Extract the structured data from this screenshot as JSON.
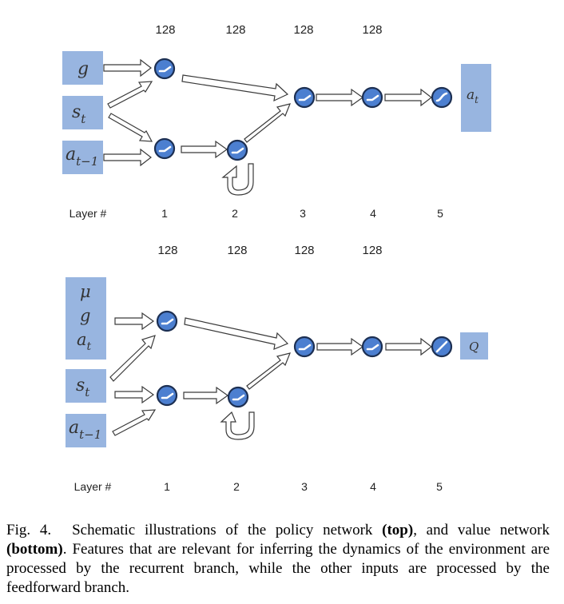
{
  "policy_network": {
    "units": [
      "128",
      "128",
      "128",
      "128"
    ],
    "layers_label": "Layer #",
    "layers": [
      "1",
      "2",
      "3",
      "4",
      "5"
    ],
    "inputs": [
      {
        "main": "g",
        "sub": ""
      },
      {
        "main": "s",
        "sub": "t"
      },
      {
        "main": "a",
        "sub": "t−1"
      }
    ],
    "output": {
      "main": "a",
      "sub": "t"
    }
  },
  "value_network": {
    "units": [
      "128",
      "128",
      "128",
      "128"
    ],
    "layers_label": "Layer #",
    "layers": [
      "1",
      "2",
      "3",
      "4",
      "5"
    ],
    "inputs_group": [
      {
        "main": "μ",
        "sub": ""
      },
      {
        "main": "g",
        "sub": ""
      },
      {
        "main": "a",
        "sub": "t"
      }
    ],
    "inputs": [
      {
        "main": "s",
        "sub": "t"
      },
      {
        "main": "a",
        "sub": "t−1"
      }
    ],
    "output": {
      "main": "Q",
      "sub": ""
    }
  },
  "caption": {
    "label": "Fig. 4.",
    "text_1": "Schematic illustrations of the policy network ",
    "bold_1": "(top)",
    "text_2": ", and value network ",
    "bold_2": "(bottom)",
    "text_3": ". Features that are relevant for inferring the dynamics of the environment are processed by the recurrent branch, while the other inputs are processed by the feedforward branch."
  }
}
